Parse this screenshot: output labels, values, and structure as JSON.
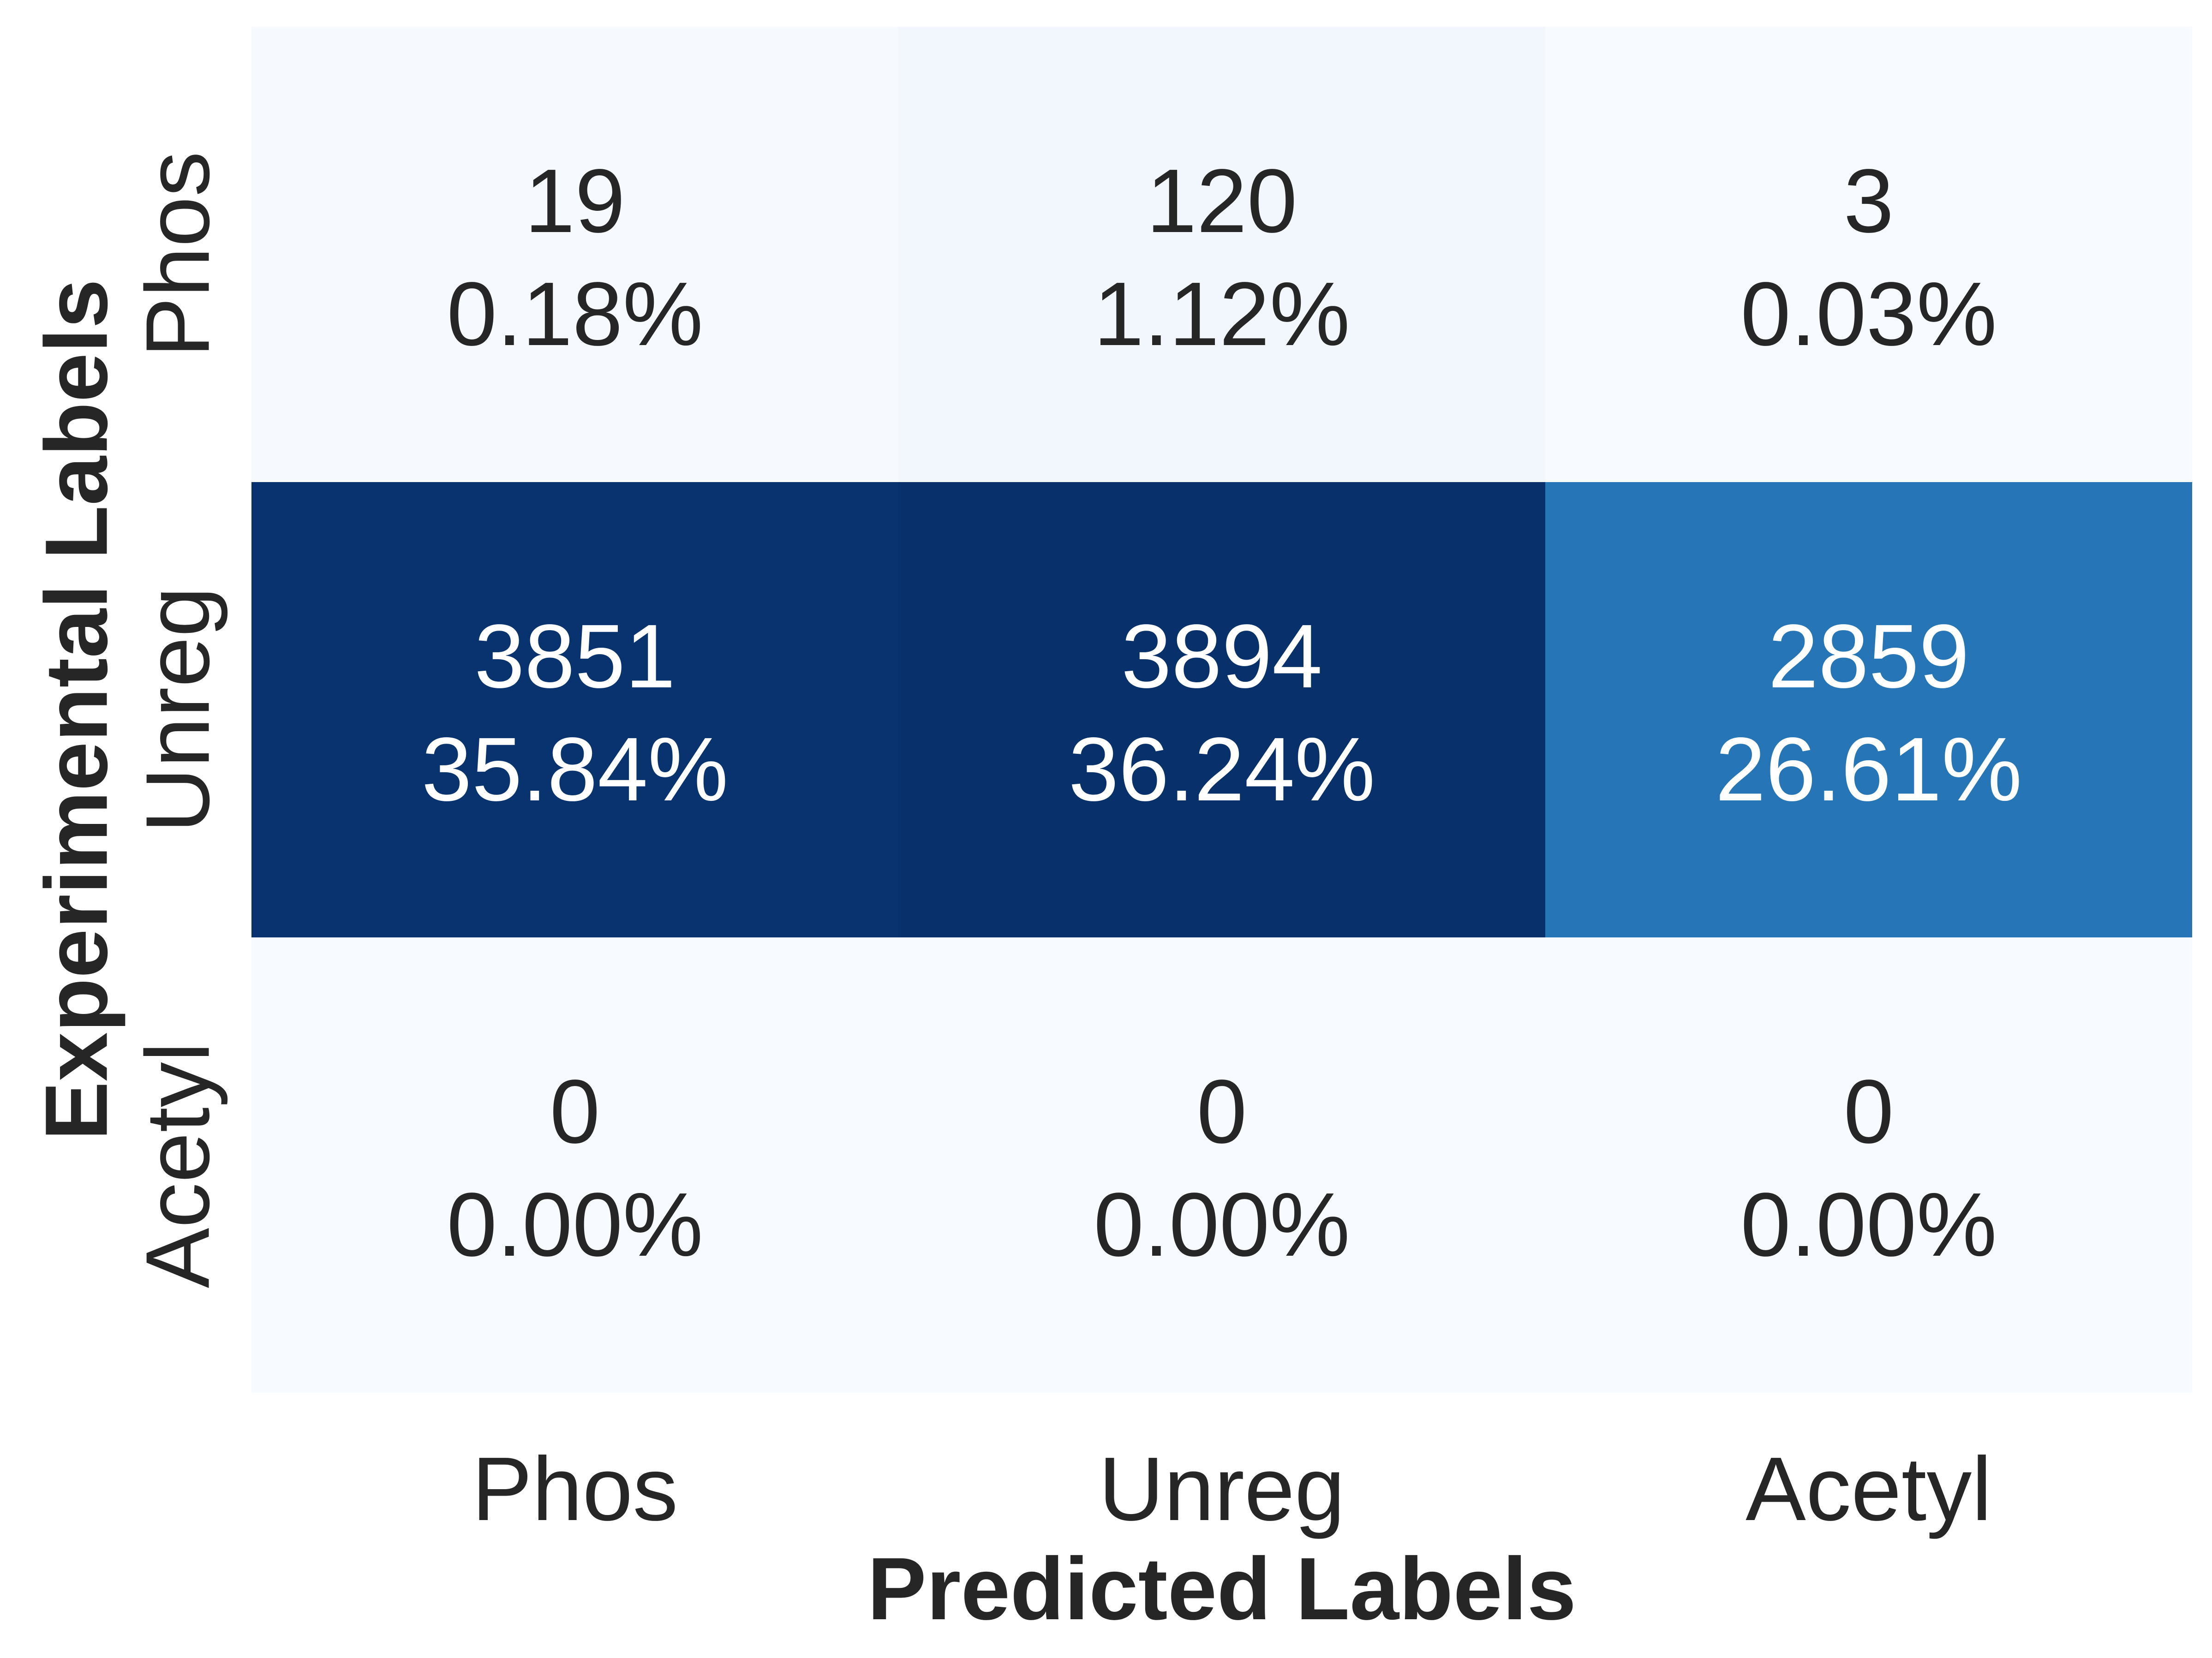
{
  "chart_data": {
    "type": "heatmap",
    "title": "",
    "xlabel": "Predicted Labels",
    "ylabel": "Experimental Labels",
    "x_categories": [
      "Phos",
      "Unreg",
      "Acetyl"
    ],
    "y_categories": [
      "Phos",
      "Unreg",
      "Acetyl"
    ],
    "values": [
      [
        19,
        120,
        3
      ],
      [
        3851,
        3894,
        2859
      ],
      [
        0,
        0,
        0
      ]
    ],
    "percentages": [
      [
        "0.18%",
        "1.12%",
        "0.03%"
      ],
      [
        "35.84%",
        "36.24%",
        "26.61%"
      ],
      [
        "0.00%",
        "0.00%",
        "0.00%"
      ]
    ],
    "colormap": "Blues",
    "color_low": "#f7fbff",
    "color_high": "#08306b",
    "text_dark": "#262626",
    "text_light": "#ffffff",
    "colorbar": false,
    "grid": false
  }
}
